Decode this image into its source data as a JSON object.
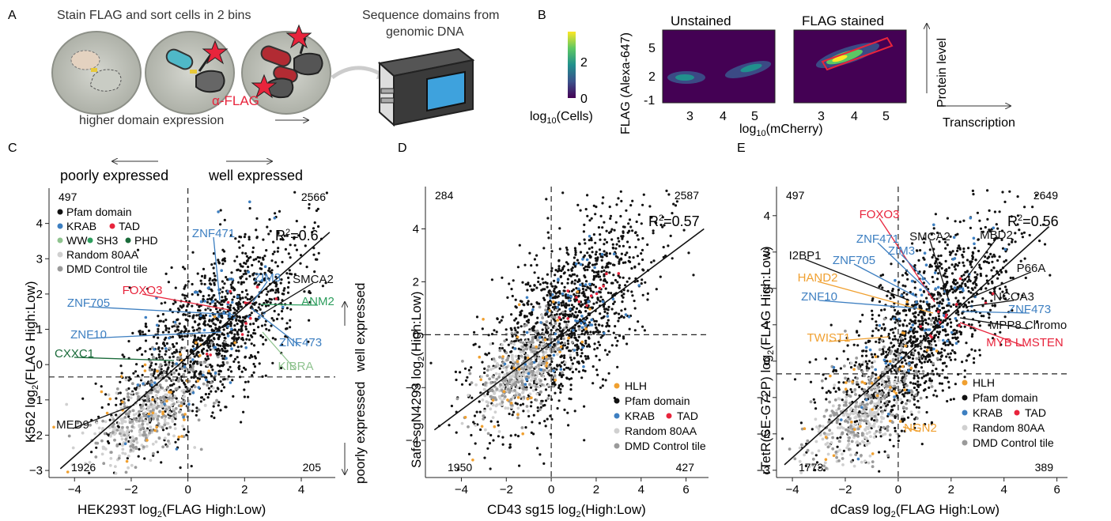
{
  "panels": {
    "A": {
      "letter": "A",
      "title_left": "Stain FLAG and sort cells in 2 bins",
      "title_right_1": "Sequence domains from",
      "title_right_2": "genomic DNA",
      "antibody": "α-FLAG",
      "bottom": "higher domain expression",
      "colors": {
        "teal": "#4fb8c8",
        "red": "#b22b33",
        "star": "#e8243c",
        "yellow": "#e8c93a"
      }
    },
    "B": {
      "letter": "B",
      "cbar_ticks": [
        "2",
        "0"
      ],
      "cbar_label": "log",
      "cbar_label_sub": "10",
      "cbar_label_tail": "(Cells)",
      "ylabel": "FLAG (Alexa-647)",
      "yticks": [
        "5",
        "2",
        "-1"
      ],
      "xticks": [
        "3",
        "4",
        "5"
      ],
      "xlabel": "log",
      "xlabel_sub": "10",
      "xlabel_tail": "(mCherry)",
      "plot1_title": "Unstained",
      "plot2_title": "FLAG stained",
      "protein_label": "Protein level",
      "transcription_label": "Transcription"
    },
    "C": {
      "letter": "C",
      "poorly": "poorly expressed",
      "well": "well expressed",
      "q_tl": "497",
      "q_tr": "2566",
      "q_bl": "1926",
      "q_br": "205",
      "r2_main": "R",
      "r2_sup": "2",
      "r2_val": "=0.6",
      "ylabel": "K562 log",
      "ylabel_sub": "2",
      "ylabel_tail": "(FLAG High:Low)",
      "xlabel": "HEK293T log",
      "xlabel_sub": "2",
      "xlabel_tail": "(FLAG High:Low)",
      "right_well": "well expressed",
      "right_poor": "poorly expressed",
      "legend": {
        "pfam": "Pfam domain",
        "krab": "KRAB",
        "tad": "TAD",
        "ww": "WW",
        "sh3": "SH3",
        "phd": "PHD",
        "random": "Random 80AA",
        "dmd": "DMD Control tile"
      },
      "labels": {
        "znf471": "ZNF471",
        "zim3": "ZIM3",
        "foxo3": "FOXO3",
        "smca2": "SMCA2",
        "znf705": "ZNF705",
        "anm2": "ANM2",
        "znf10": "ZNF10",
        "znf473": "ZNF473",
        "cxxc1": "CXXC1",
        "kibra": "KIBRA",
        "med9": "MED9"
      }
    },
    "D": {
      "letter": "D",
      "q_tl": "284",
      "q_tr": "2587",
      "q_bl": "1950",
      "q_br": "427",
      "r2_main": "R",
      "r2_sup": "2",
      "r2_val": "=0.57",
      "ylabel": "Safe sgN4293 log",
      "ylabel_sub": "2",
      "ylabel_tail": "(High:Low)",
      "xlabel": "CD43 sg15 log",
      "xlabel_sub": "2",
      "xlabel_tail": "(High:Low)",
      "legend": {
        "hlh": "HLH",
        "pfam": "Pfam domain",
        "krab": "KRAB",
        "tad": "TAD",
        "random": "Random 80AA",
        "dmd": "DMD Control tile"
      }
    },
    "E": {
      "letter": "E",
      "q_tl": "497",
      "q_tr": "2649",
      "q_bl": "1773",
      "q_br": "389",
      "r2_main": "R",
      "r2_sup": "2",
      "r2_val": "=0.56",
      "ylabel": "rTetR(SE-G72P) log",
      "ylabel_sub": "2",
      "ylabel_tail": "(FLAG High:Low)",
      "xlabel": "dCas9 log",
      "xlabel_sub": "2",
      "xlabel_tail": "(FLAG High:Low)",
      "legend": {
        "hlh": "HLH",
        "pfam": "Pfam domain",
        "krab": "KRAB",
        "tad": "TAD",
        "random": "Random 80AA",
        "dmd": "DMD Control tile"
      },
      "labels": {
        "foxo3": "FOXO3",
        "znf471": "ZNF471",
        "smca2": "SMCA2",
        "mbd2": "MBD2",
        "zim3": "ZIM3",
        "i2bp1": "I2BP1",
        "znf705": "ZNF705",
        "p66a": "P66A",
        "hand2": "HAND2",
        "ncoa3": "NCOA3",
        "znf10": "ZNF10",
        "znf473": "ZNF473",
        "mpp8": "MPP8 Chromo",
        "twist1": "TWIST1",
        "myb": "MYB LMSTEN",
        "ngn2": "NGN2"
      }
    }
  },
  "colors": {
    "pfam": "#111111",
    "krab": "#3d7fc1",
    "tad": "#e8243c",
    "hlh": "#f0a030",
    "ww": "#8fc38f",
    "sh3": "#2e9e5e",
    "phd": "#1a6b3a",
    "random": "#d0d0d0",
    "dmd": "#9a9a9a",
    "kibra": "#8fc38f",
    "cxxc1": "#1a6b3a",
    "anm2": "#2e9e5e"
  },
  "chart_data": [
    {
      "type": "scatter",
      "panel": "C",
      "xlabel": "HEK293T log2(FLAG High:Low)",
      "ylabel": "K562 log2(FLAG High:Low)",
      "xlim": [
        -4.9,
        5.2
      ],
      "ylim": [
        -3.2,
        5.0
      ],
      "xticks": [
        -4,
        -2,
        0,
        2,
        4
      ],
      "yticks": [
        -3,
        -2,
        -1,
        0,
        1,
        2,
        3,
        4
      ],
      "thresholds": {
        "x": 0,
        "y": -0.35
      },
      "fit_line": {
        "x": [
          -4.5,
          5.0
        ],
        "y": [
          -2.95,
          3.75
        ]
      },
      "r2": 0.6,
      "quadrant_counts": {
        "top_left": 497,
        "top_right": 2566,
        "bottom_left": 1926,
        "bottom_right": 205
      },
      "seed": 11,
      "center": [
        0.8,
        0.9
      ],
      "spread": [
        1.6,
        1.05
      ],
      "slope": 0.62
    },
    {
      "type": "scatter",
      "panel": "D",
      "xlabel": "CD43 sg15 log2(High:Low)",
      "ylabel": "Safe sgN4293 log2(High:Low)",
      "xlim": [
        -5.6,
        7.0
      ],
      "ylim": [
        -5.4,
        5.6
      ],
      "xticks": [
        -4,
        -2,
        0,
        2,
        4,
        6
      ],
      "yticks": [
        -4,
        -2,
        0,
        2,
        4
      ],
      "thresholds": {
        "x": 0,
        "y": 0
      },
      "fit_line": {
        "x": [
          -5.2,
          6.8
        ],
        "y": [
          -3.6,
          4.0
        ]
      },
      "r2": 0.57,
      "quadrant_counts": {
        "top_left": 284,
        "top_right": 2587,
        "bottom_left": 1950,
        "bottom_right": 427
      },
      "seed": 23,
      "center": [
        0.6,
        0.5
      ],
      "spread": [
        1.9,
        1.6
      ],
      "slope": 0.68
    },
    {
      "type": "scatter",
      "panel": "E",
      "xlabel": "dCas9 log2(FLAG High:Low)",
      "ylabel": "rTetR(SE-G72P) log2(FLAG High:Low)",
      "xlim": [
        -4.6,
        6.4
      ],
      "ylim": [
        -3.2,
        4.8
      ],
      "xticks": [
        -4,
        -2,
        0,
        2,
        4,
        6
      ],
      "yticks": [
        -3,
        -2,
        -1,
        0,
        1,
        2,
        3,
        4
      ],
      "thresholds": {
        "x": 0,
        "y": -0.35
      },
      "fit_line": {
        "x": [
          -4.3,
          5.7
        ],
        "y": [
          -2.85,
          3.7
        ]
      },
      "r2": 0.56,
      "quadrant_counts": {
        "top_left": 497,
        "top_right": 2649,
        "bottom_left": 1773,
        "bottom_right": 389
      },
      "seed": 37,
      "center": [
        0.9,
        0.8
      ],
      "spread": [
        1.7,
        1.1
      ],
      "slope": 0.64
    }
  ]
}
